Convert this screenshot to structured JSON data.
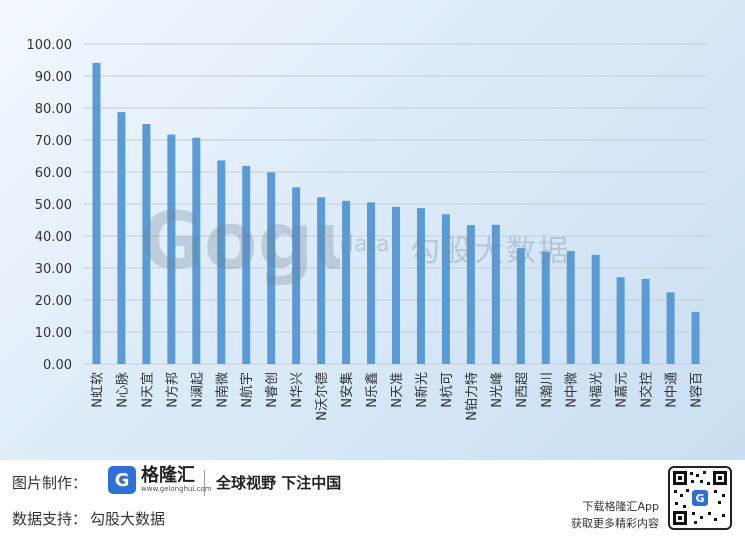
{
  "chart_data": {
    "type": "bar",
    "categories": [
      "N虹软",
      "N心脉",
      "N天宜",
      "N方邦",
      "N澜起",
      "N南微",
      "N航宇",
      "N睿创",
      "N华兴",
      "N沃尔德",
      "N安集",
      "N乐鑫",
      "N天准",
      "N新光",
      "N杭可",
      "N铂力特",
      "N光峰",
      "N西超",
      "N瀚川",
      "N中微",
      "N福光",
      "N嘉元",
      "N交控",
      "N中通",
      "N容百"
    ],
    "values": [
      94.1,
      78.7,
      75.0,
      71.7,
      70.7,
      63.6,
      61.9,
      59.9,
      55.2,
      52.1,
      51.0,
      50.5,
      49.1,
      48.7,
      46.8,
      43.4,
      43.5,
      36.2,
      35.1,
      35.3,
      34.1,
      27.1,
      26.6,
      22.4,
      16.3
    ],
    "ylim": [
      0,
      100
    ],
    "yticks": [
      "0.00",
      "10.00",
      "20.00",
      "30.00",
      "40.00",
      "50.00",
      "60.00",
      "70.00",
      "80.00",
      "90.00",
      "100.00"
    ],
    "grid": true,
    "bar_color": "#5b9bd5"
  },
  "watermark": {
    "logo_text": "Gogu",
    "data_text": "data",
    "cn_text": "勾股大数据"
  },
  "footer": {
    "made_by_label": "图片制作：",
    "brand_logo_letter": "G",
    "brand_name": "格隆汇",
    "brand_url": "www.gelonghui.com",
    "slogan": "全球视野 下注中国",
    "data_support_label": "数据支持：",
    "data_support_value": "勾股大数据",
    "app_line1": "下载格隆汇App",
    "app_line2": "获取更多精彩内容"
  }
}
